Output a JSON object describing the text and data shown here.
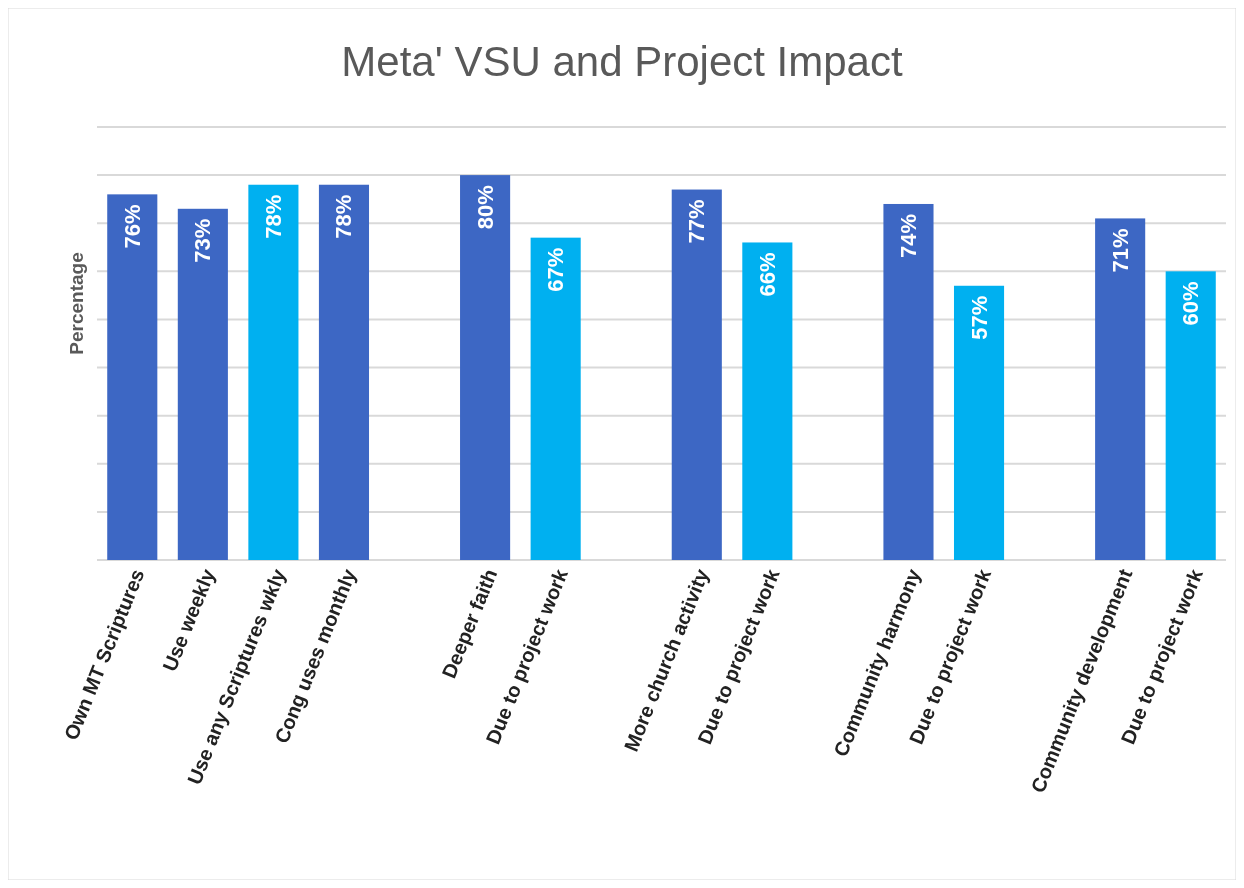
{
  "chart_data": {
    "type": "bar",
    "title": "Meta' VSU and Project Impact",
    "ylabel": "Percentage",
    "categories": [
      "Own MT Scriptures",
      "Use weekly",
      "Use any Scriptures wkly",
      "Cong uses monthly",
      null,
      "Deeper faith",
      "Due to project work",
      null,
      "More church activity",
      "Due to project work",
      null,
      "Community harmony",
      "Due to project work",
      null,
      "Community development",
      "Due to project work"
    ],
    "values": [
      76,
      73,
      78,
      78,
      null,
      80,
      67,
      null,
      77,
      66,
      null,
      74,
      57,
      null,
      71,
      60
    ],
    "colors": [
      "#3d67c4",
      "#3d67c4",
      "#00b0f0",
      "#3d67c4",
      null,
      "#3d67c4",
      "#00b0f0",
      null,
      "#3d67c4",
      "#00b0f0",
      null,
      "#3d67c4",
      "#00b0f0",
      null,
      "#3d67c4",
      "#00b0f0"
    ],
    "value_labels": [
      "76%",
      "73%",
      "78%",
      "78%",
      null,
      "80%",
      "67%",
      null,
      "77%",
      "66%",
      null,
      "74%",
      "57%",
      null,
      "71%",
      "60%"
    ],
    "ylim": [
      0,
      90
    ],
    "yticks": [
      {
        "value": 0,
        "label": null
      },
      {
        "value": 10,
        "label": null
      },
      {
        "value": 20,
        "label": null
      },
      {
        "value": 30,
        "label": null
      },
      {
        "value": 40,
        "label": null
      },
      {
        "value": 50,
        "label": null
      },
      {
        "value": 60,
        "label": null
      },
      {
        "value": 70,
        "label": null
      },
      {
        "value": 80,
        "label": null
      },
      {
        "value": 90,
        "label": null
      }
    ],
    "grid": "y",
    "tick_labels": "x"
  }
}
